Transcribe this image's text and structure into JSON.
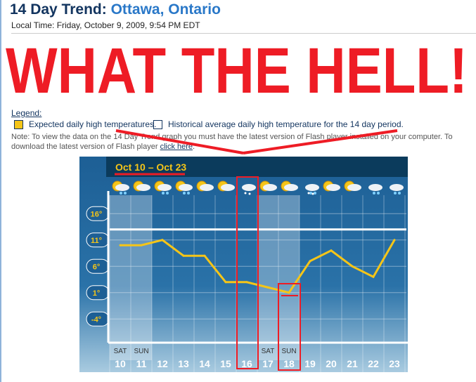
{
  "header": {
    "title_prefix": "14 Day Trend:",
    "title_city": "Ottawa, Ontario",
    "local_time": "Local Time: Friday, October 9, 2009, 9:54 PM EDT"
  },
  "legend": {
    "heading": "Legend:",
    "items": [
      {
        "label": "Expected daily high temperatures.",
        "color": "#f5c518"
      },
      {
        "label": "Historical average daily high temperature for the 14 day period.",
        "color": "#ffffff"
      }
    ]
  },
  "note": {
    "text": "Note: To view the data on the 14 Day Trend graph you must have the latest version of Flash player installed on your computer. To download the latest version of Flash player ",
    "link": "click here",
    "end": "."
  },
  "overlay": {
    "text": "WHAT THE HELL!",
    "color": "#ee1c25"
  },
  "chart_data": {
    "type": "line",
    "title": "Oct 10 – Oct 23",
    "categories": [
      "10",
      "11",
      "12",
      "13",
      "14",
      "15",
      "16",
      "17",
      "18",
      "19",
      "20",
      "21",
      "22",
      "23"
    ],
    "weekday_labels": {
      "10": "SAT",
      "11": "SUN",
      "17": "SAT",
      "18": "SUN"
    },
    "icons": [
      "sun-cloud-rain",
      "sun-cloud",
      "sun-cloud-rain",
      "sun-cloud-rain",
      "sun-cloud",
      "sun-cloud",
      "snow",
      "sun-cloud",
      "sun-cloud",
      "rain-snow",
      "sun-cloud",
      "sun-cloud",
      "rain",
      "rain"
    ],
    "values": [
      10,
      10,
      11,
      8,
      8,
      3,
      3,
      2,
      1,
      7,
      9,
      6,
      4,
      11
    ],
    "historical_average": 13,
    "yticks": [
      "16°",
      "11°",
      "6°",
      "1°",
      "-4°"
    ],
    "ytick_values": [
      16,
      11,
      6,
      1,
      -4
    ],
    "ylim": [
      -8.5,
      19.5
    ],
    "series_color": "#f5c518",
    "highlighted": [
      "16",
      "18"
    ]
  }
}
